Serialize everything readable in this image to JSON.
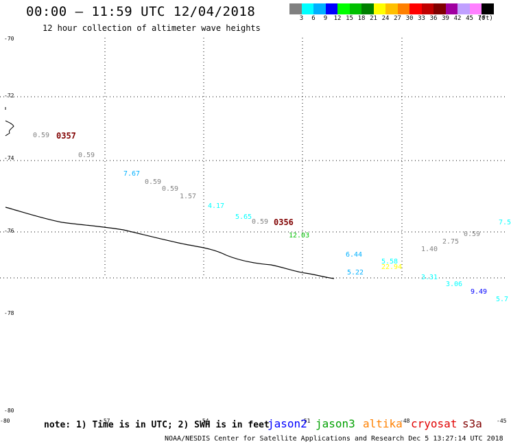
{
  "title": "00:00 – 11:59 UTC 12/04/2018",
  "subtitle": "12 hour collection of altimeter wave heights",
  "colorbar": {
    "colors": [
      "#808080",
      "#00ffff",
      "#00b0ff",
      "#0000ff",
      "#00ff00",
      "#00c000",
      "#008000",
      "#ffff00",
      "#ffc000",
      "#ff8000",
      "#ff0000",
      "#c00000",
      "#800000",
      "#a000a0",
      "#c0a0ff",
      "#ff80ff",
      "#000000"
    ],
    "labels": [
      "3",
      "6",
      "9",
      "12",
      "15",
      "18",
      "21",
      "24",
      "27",
      "30",
      "33",
      "36",
      "39",
      "42",
      "45",
      "70",
      "(ft)"
    ]
  },
  "lat_labels": [
    "-70",
    "-72",
    "-74",
    "-76",
    "-78",
    "-80",
    "-80"
  ],
  "lon_labels": [
    "-57",
    "-54",
    "-51",
    "-48",
    "-45"
  ],
  "revs": [
    {
      "text": "0357",
      "color": "#800000"
    },
    {
      "text": "0356",
      "color": "#800000"
    }
  ],
  "wave_heights": [
    {
      "text": "0.59",
      "color": "#808080"
    },
    {
      "text": "0.59",
      "color": "#808080"
    },
    {
      "text": "7.67",
      "color": "#00b0ff"
    },
    {
      "text": "0.59",
      "color": "#808080"
    },
    {
      "text": "0.59",
      "color": "#808080"
    },
    {
      "text": "1.57",
      "color": "#808080"
    },
    {
      "text": "4.17",
      "color": "#00ffff"
    },
    {
      "text": "5.65",
      "color": "#00ffff"
    },
    {
      "text": "0.59",
      "color": "#808080"
    },
    {
      "text": "12.03",
      "color": "#00c000"
    },
    {
      "text": "6.44",
      "color": "#00b0ff"
    },
    {
      "text": "5.22",
      "color": "#00b0ff"
    },
    {
      "text": "5.58",
      "color": "#00ffff"
    },
    {
      "text": "22.94",
      "color": "#ffff00"
    },
    {
      "text": "1.40",
      "color": "#808080"
    },
    {
      "text": "2.75",
      "color": "#808080"
    },
    {
      "text": "0.59",
      "color": "#808080"
    },
    {
      "text": "3.31",
      "color": "#00ffff"
    },
    {
      "text": "3.06",
      "color": "#00ffff"
    },
    {
      "text": "9.49",
      "color": "#0000ff"
    },
    {
      "text": "5.7",
      "color": "#00ffff"
    },
    {
      "text": "7.5",
      "color": "#00ffff"
    }
  ],
  "note": "note: 1) Time is in UTC; 2) SWH is in feet",
  "satellites": [
    {
      "name": "jason2",
      "color": "#0000ff"
    },
    {
      "name": "jason3",
      "color": "#00a000"
    },
    {
      "name": "altika",
      "color": "#ff8000"
    },
    {
      "name": "cryosat",
      "color": "#e00000"
    },
    {
      "name": "s3a",
      "color": "#800000"
    }
  ],
  "credit": "NOAA/NESDIS Center for Satellite Applications and Research    Dec  5 13:27:14 UTC 2018"
}
